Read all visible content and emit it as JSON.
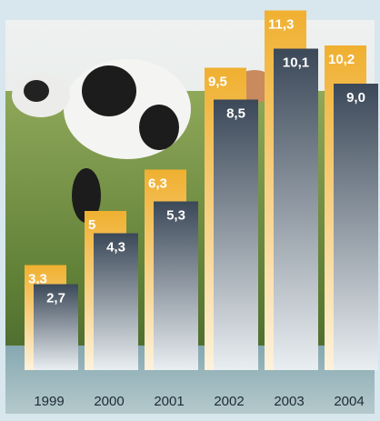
{
  "chart_data": {
    "type": "bar",
    "categories": [
      "1999",
      "2000",
      "2001",
      "2002",
      "2003",
      "2004"
    ],
    "series": [
      {
        "color": "#f0b030",
        "values": [
          3.3,
          5,
          6.3,
          9.5,
          11.3,
          10.2
        ],
        "value_labels": [
          "3,3",
          "5",
          "6,3",
          "9,5",
          "11,3",
          "10,2"
        ]
      },
      {
        "color": "#3b4858",
        "values": [
          2.7,
          4.3,
          5.3,
          8.5,
          10.1,
          9.0
        ],
        "value_labels": [
          "2,7",
          "4,3",
          "5,3",
          "8,5",
          "10,1",
          "9,0"
        ]
      }
    ]
  }
}
